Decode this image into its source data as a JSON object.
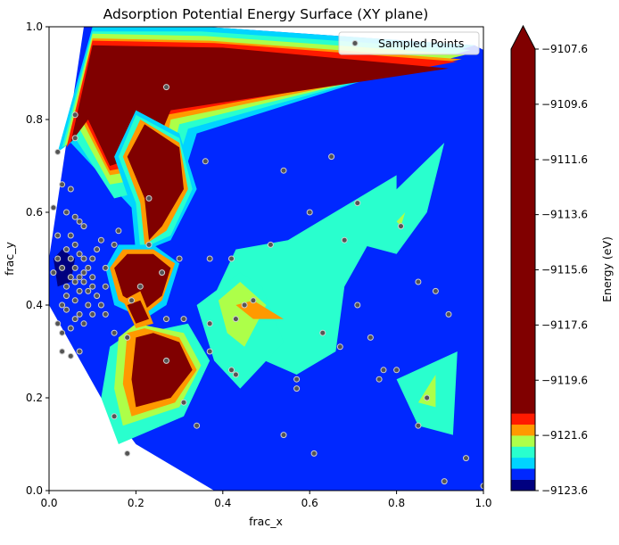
{
  "chart_data": {
    "type": "contourf",
    "title": "Adsorption Potential Energy Surface (XY plane)",
    "xlabel": "frac_x",
    "ylabel": "frac_y",
    "xlim": [
      0,
      1
    ],
    "ylim": [
      0,
      1
    ],
    "xticks": [
      "0.0",
      "0.2",
      "0.4",
      "0.6",
      "0.8",
      "1.0"
    ],
    "yticks": [
      "0.0",
      "0.2",
      "0.4",
      "0.6",
      "0.8",
      "1.0"
    ],
    "legend": {
      "label": "Sampled Points",
      "position": "upper-right"
    },
    "colorbar": {
      "label": "Energy (eV)",
      "min": -9123.6,
      "max": -9107.6,
      "extend": "max",
      "ticks": [
        "−9107.6",
        "−9109.6",
        "−9111.6",
        "−9113.6",
        "−9115.6",
        "−9117.6",
        "−9119.6",
        "−9121.6",
        "−9123.6"
      ],
      "levels": [
        {
          "from": -9123.6,
          "to": -9123.2,
          "color": "#000080"
        },
        {
          "from": -9123.2,
          "to": -9122.8,
          "color": "#0028ff"
        },
        {
          "from": -9122.8,
          "to": -9122.4,
          "color": "#00d4ff"
        },
        {
          "from": -9122.4,
          "to": -9122.0,
          "color": "#29ffce"
        },
        {
          "from": -9122.0,
          "to": -9121.6,
          "color": "#adff49"
        },
        {
          "from": -9121.6,
          "to": -9121.2,
          "color": "#ff9900"
        },
        {
          "from": -9121.2,
          "to": -9120.8,
          "color": "#ff1a00"
        },
        {
          "from": -9120.8,
          "to": -9107.6,
          "color": "#800000"
        }
      ]
    },
    "regions": [
      {
        "level": "#0028ff",
        "points": [
          [
            0,
            0.5
          ],
          [
            0.08,
            1
          ],
          [
            0.36,
            1
          ],
          [
            0.98,
            0.96
          ],
          [
            1,
            0.95
          ],
          [
            1,
            0
          ],
          [
            0.38,
            0
          ],
          [
            0.2,
            0.1
          ],
          [
            0.12,
            0.2
          ],
          [
            0,
            0.4
          ]
        ]
      },
      {
        "level": "#00d4ff",
        "points": [
          [
            0.02,
            0.73
          ],
          [
            0.1,
            1
          ],
          [
            0.36,
            1
          ],
          [
            0.98,
            0.96
          ],
          [
            0.34,
            0.77
          ],
          [
            0.3,
            0.65
          ],
          [
            0.2,
            0.6
          ],
          [
            0.05,
            0.75
          ]
        ]
      },
      {
        "level": "#29ffce",
        "points": [
          [
            0.03,
            0.74
          ],
          [
            0.1,
            0.99
          ],
          [
            0.35,
            0.99
          ],
          [
            0.97,
            0.95
          ],
          [
            0.32,
            0.78
          ],
          [
            0.28,
            0.66
          ],
          [
            0.15,
            0.63
          ],
          [
            0.06,
            0.76
          ]
        ]
      },
      {
        "level": "#adff49",
        "points": [
          [
            0.035,
            0.74
          ],
          [
            0.1,
            0.985
          ],
          [
            0.36,
            0.98
          ],
          [
            0.96,
            0.94
          ],
          [
            0.3,
            0.79
          ],
          [
            0.27,
            0.68
          ],
          [
            0.14,
            0.66
          ],
          [
            0.07,
            0.78
          ]
        ]
      },
      {
        "level": "#ff9900",
        "points": [
          [
            0.04,
            0.74
          ],
          [
            0.1,
            0.975
          ],
          [
            0.37,
            0.97
          ],
          [
            0.95,
            0.93
          ],
          [
            0.28,
            0.8
          ],
          [
            0.26,
            0.7
          ],
          [
            0.14,
            0.68
          ],
          [
            0.08,
            0.79
          ]
        ]
      },
      {
        "level": "#ff1a00",
        "points": [
          [
            0.04,
            0.74
          ],
          [
            0.1,
            0.97
          ],
          [
            0.38,
            0.965
          ],
          [
            0.94,
            0.925
          ],
          [
            0.27,
            0.81
          ],
          [
            0.25,
            0.71
          ],
          [
            0.14,
            0.69
          ],
          [
            0.085,
            0.795
          ]
        ]
      },
      {
        "level": "#800000",
        "points": [
          [
            0.05,
            0.75
          ],
          [
            0.1,
            0.96
          ],
          [
            0.4,
            0.955
          ],
          [
            0.92,
            0.91
          ],
          [
            0.28,
            0.82
          ],
          [
            0.24,
            0.73
          ],
          [
            0.14,
            0.7
          ],
          [
            0.09,
            0.8
          ]
        ]
      },
      {
        "level": "#00d4ff",
        "points": [
          [
            0.2,
            0.82
          ],
          [
            0.3,
            0.77
          ],
          [
            0.34,
            0.65
          ],
          [
            0.28,
            0.54
          ],
          [
            0.2,
            0.51
          ],
          [
            0.19,
            0.61
          ],
          [
            0.15,
            0.72
          ]
        ]
      },
      {
        "level": "#29ffce",
        "points": [
          [
            0.2,
            0.81
          ],
          [
            0.3,
            0.76
          ],
          [
            0.33,
            0.65
          ],
          [
            0.28,
            0.55
          ],
          [
            0.21,
            0.52
          ],
          [
            0.2,
            0.62
          ],
          [
            0.16,
            0.72
          ]
        ]
      },
      {
        "level": "#ff9900",
        "points": [
          [
            0.21,
            0.8
          ],
          [
            0.3,
            0.75
          ],
          [
            0.32,
            0.65
          ],
          [
            0.27,
            0.56
          ],
          [
            0.22,
            0.53
          ],
          [
            0.21,
            0.62
          ],
          [
            0.17,
            0.72
          ]
        ]
      },
      {
        "level": "#800000",
        "points": [
          [
            0.22,
            0.79
          ],
          [
            0.3,
            0.74
          ],
          [
            0.31,
            0.65
          ],
          [
            0.26,
            0.57
          ],
          [
            0.23,
            0.54
          ],
          [
            0.22,
            0.63
          ],
          [
            0.18,
            0.72
          ]
        ]
      },
      {
        "level": "#29ffce",
        "points": [
          [
            0.55,
            0.54
          ],
          [
            0.8,
            0.68
          ],
          [
            0.8,
            0.64
          ],
          [
            0.68,
            0.44
          ],
          [
            0.66,
            0.3
          ],
          [
            0.57,
            0.25
          ],
          [
            0.4,
            0.32
          ],
          [
            0.36,
            0.38
          ],
          [
            0.43,
            0.52
          ]
        ]
      },
      {
        "level": "#29ffce",
        "points": [
          [
            0.68,
            0.54
          ],
          [
            0.91,
            0.75
          ],
          [
            0.87,
            0.6
          ],
          [
            0.8,
            0.51
          ]
        ]
      },
      {
        "level": "#adff49",
        "points": [
          [
            0.8,
            0.58
          ],
          [
            0.82,
            0.6
          ],
          [
            0.81,
            0.57
          ]
        ]
      },
      {
        "level": "#29ffce",
        "points": [
          [
            0.34,
            0.4
          ],
          [
            0.44,
            0.47
          ],
          [
            0.49,
            0.44
          ],
          [
            0.54,
            0.32
          ],
          [
            0.44,
            0.22
          ],
          [
            0.38,
            0.28
          ]
        ]
      },
      {
        "level": "#adff49",
        "points": [
          [
            0.39,
            0.41
          ],
          [
            0.44,
            0.45
          ],
          [
            0.5,
            0.4
          ],
          [
            0.45,
            0.31
          ],
          [
            0.41,
            0.34
          ]
        ]
      },
      {
        "level": "#ff9900",
        "points": [
          [
            0.43,
            0.4
          ],
          [
            0.47,
            0.41
          ],
          [
            0.54,
            0.37
          ],
          [
            0.47,
            0.37
          ]
        ]
      },
      {
        "level": "#29ffce",
        "points": [
          [
            0.14,
            0.31
          ],
          [
            0.17,
            0.33
          ],
          [
            0.32,
            0.36
          ],
          [
            0.37,
            0.28
          ],
          [
            0.31,
            0.16
          ],
          [
            0.16,
            0.1
          ],
          [
            0.12,
            0.2
          ]
        ]
      },
      {
        "level": "#adff49",
        "points": [
          [
            0.16,
            0.33
          ],
          [
            0.2,
            0.36
          ],
          [
            0.31,
            0.34
          ],
          [
            0.35,
            0.27
          ],
          [
            0.3,
            0.18
          ],
          [
            0.17,
            0.14
          ],
          [
            0.15,
            0.22
          ]
        ]
      },
      {
        "level": "#ff9900",
        "points": [
          [
            0.18,
            0.34
          ],
          [
            0.22,
            0.35
          ],
          [
            0.3,
            0.33
          ],
          [
            0.34,
            0.26
          ],
          [
            0.29,
            0.19
          ],
          [
            0.19,
            0.16
          ],
          [
            0.17,
            0.23
          ]
        ]
      },
      {
        "level": "#800000",
        "points": [
          [
            0.2,
            0.33
          ],
          [
            0.24,
            0.34
          ],
          [
            0.3,
            0.32
          ],
          [
            0.33,
            0.26
          ],
          [
            0.28,
            0.2
          ],
          [
            0.2,
            0.18
          ],
          [
            0.19,
            0.24
          ]
        ]
      },
      {
        "level": "#00d4ff",
        "points": [
          [
            0.13,
            0.48
          ],
          [
            0.16,
            0.53
          ],
          [
            0.24,
            0.53
          ],
          [
            0.3,
            0.49
          ],
          [
            0.27,
            0.4
          ],
          [
            0.22,
            0.37
          ],
          [
            0.15,
            0.4
          ]
        ]
      },
      {
        "level": "#ff9900",
        "points": [
          [
            0.14,
            0.48
          ],
          [
            0.17,
            0.52
          ],
          [
            0.24,
            0.52
          ],
          [
            0.29,
            0.49
          ],
          [
            0.26,
            0.41
          ],
          [
            0.22,
            0.38
          ],
          [
            0.16,
            0.41
          ]
        ]
      },
      {
        "level": "#800000",
        "points": [
          [
            0.15,
            0.48
          ],
          [
            0.18,
            0.51
          ],
          [
            0.24,
            0.51
          ],
          [
            0.28,
            0.48
          ],
          [
            0.26,
            0.42
          ],
          [
            0.22,
            0.39
          ],
          [
            0.17,
            0.42
          ]
        ]
      },
      {
        "level": "#ff9900",
        "points": [
          [
            0.17,
            0.41
          ],
          [
            0.21,
            0.43
          ],
          [
            0.24,
            0.36
          ],
          [
            0.2,
            0.35
          ]
        ]
      },
      {
        "level": "#800000",
        "points": [
          [
            0.18,
            0.4
          ],
          [
            0.21,
            0.41
          ],
          [
            0.23,
            0.37
          ],
          [
            0.2,
            0.36
          ]
        ]
      },
      {
        "level": "#29ffce",
        "points": [
          [
            0.8,
            0.24
          ],
          [
            0.94,
            0.3
          ],
          [
            0.93,
            0.12
          ],
          [
            0.85,
            0.14
          ]
        ]
      },
      {
        "level": "#adff49",
        "points": [
          [
            0.85,
            0.19
          ],
          [
            0.89,
            0.25
          ],
          [
            0.89,
            0.18
          ]
        ]
      },
      {
        "level": "#000080",
        "points": [
          [
            0.01,
            0.5
          ],
          [
            0.03,
            0.52
          ],
          [
            0.06,
            0.5
          ],
          [
            0.05,
            0.45
          ],
          [
            0.02,
            0.44
          ]
        ]
      }
    ],
    "points": [
      [
        0.01,
        0.61
      ],
      [
        0.03,
        0.66
      ],
      [
        0.05,
        0.65
      ],
      [
        0.08,
        0.57
      ],
      [
        0.04,
        0.6
      ],
      [
        0.06,
        0.59
      ],
      [
        0.07,
        0.58
      ],
      [
        0.05,
        0.55
      ],
      [
        0.06,
        0.53
      ],
      [
        0.07,
        0.51
      ],
      [
        0.08,
        0.5
      ],
      [
        0.09,
        0.48
      ],
      [
        0.1,
        0.46
      ],
      [
        0.1,
        0.44
      ],
      [
        0.11,
        0.42
      ],
      [
        0.12,
        0.4
      ],
      [
        0.09,
        0.4
      ],
      [
        0.1,
        0.38
      ],
      [
        0.07,
        0.38
      ],
      [
        0.06,
        0.37
      ],
      [
        0.05,
        0.35
      ],
      [
        0.03,
        0.34
      ],
      [
        0.02,
        0.36
      ],
      [
        0.03,
        0.4
      ],
      [
        0.04,
        0.44
      ],
      [
        0.05,
        0.46
      ],
      [
        0.06,
        0.48
      ],
      [
        0.08,
        0.45
      ],
      [
        0.09,
        0.43
      ],
      [
        0.07,
        0.43
      ],
      [
        0.06,
        0.41
      ],
      [
        0.04,
        0.42
      ],
      [
        0.03,
        0.48
      ],
      [
        0.02,
        0.5
      ],
      [
        0.04,
        0.52
      ],
      [
        0.05,
        0.5
      ],
      [
        0.06,
        0.45
      ],
      [
        0.07,
        0.46
      ],
      [
        0.08,
        0.47
      ],
      [
        0.1,
        0.5
      ],
      [
        0.11,
        0.52
      ],
      [
        0.13,
        0.48
      ],
      [
        0.13,
        0.44
      ],
      [
        0.13,
        0.38
      ],
      [
        0.15,
        0.34
      ],
      [
        0.15,
        0.53
      ],
      [
        0.16,
        0.56
      ],
      [
        0.12,
        0.54
      ],
      [
        0.03,
        0.3
      ],
      [
        0.05,
        0.29
      ],
      [
        0.07,
        0.3
      ],
      [
        0.06,
        0.81
      ],
      [
        0.06,
        0.76
      ],
      [
        0.02,
        0.73
      ],
      [
        0.27,
        0.87
      ],
      [
        0.36,
        0.71
      ],
      [
        0.23,
        0.63
      ],
      [
        0.23,
        0.53
      ],
      [
        0.42,
        0.5
      ],
      [
        0.51,
        0.53
      ],
      [
        0.54,
        0.69
      ],
      [
        0.65,
        0.72
      ],
      [
        0.71,
        0.62
      ],
      [
        0.68,
        0.54
      ],
      [
        0.81,
        0.57
      ],
      [
        0.6,
        0.6
      ],
      [
        0.47,
        0.41
      ],
      [
        0.45,
        0.4
      ],
      [
        0.43,
        0.37
      ],
      [
        0.27,
        0.37
      ],
      [
        0.31,
        0.37
      ],
      [
        0.37,
        0.36
      ],
      [
        0.37,
        0.3
      ],
      [
        0.42,
        0.26
      ],
      [
        0.43,
        0.25
      ],
      [
        0.27,
        0.28
      ],
      [
        0.31,
        0.19
      ],
      [
        0.34,
        0.14
      ],
      [
        0.18,
        0.08
      ],
      [
        0.15,
        0.16
      ],
      [
        0.18,
        0.33
      ],
      [
        0.19,
        0.41
      ],
      [
        0.21,
        0.44
      ],
      [
        0.26,
        0.47
      ],
      [
        0.3,
        0.5
      ],
      [
        0.37,
        0.5
      ],
      [
        0.54,
        0.12
      ],
      [
        0.57,
        0.22
      ],
      [
        0.57,
        0.24
      ],
      [
        0.61,
        0.08
      ],
      [
        0.63,
        0.34
      ],
      [
        0.67,
        0.31
      ],
      [
        0.71,
        0.4
      ],
      [
        0.74,
        0.33
      ],
      [
        0.76,
        0.24
      ],
      [
        0.77,
        0.26
      ],
      [
        0.8,
        0.26
      ],
      [
        0.85,
        0.45
      ],
      [
        0.85,
        0.14
      ],
      [
        0.87,
        0.2
      ],
      [
        0.89,
        0.43
      ],
      [
        0.92,
        0.38
      ],
      [
        0.91,
        0.02
      ],
      [
        0.96,
        0.07
      ],
      [
        1.0,
        0.01
      ],
      [
        0.04,
        0.39
      ],
      [
        0.08,
        0.36
      ],
      [
        0.01,
        0.47
      ],
      [
        0.02,
        0.55
      ]
    ]
  }
}
